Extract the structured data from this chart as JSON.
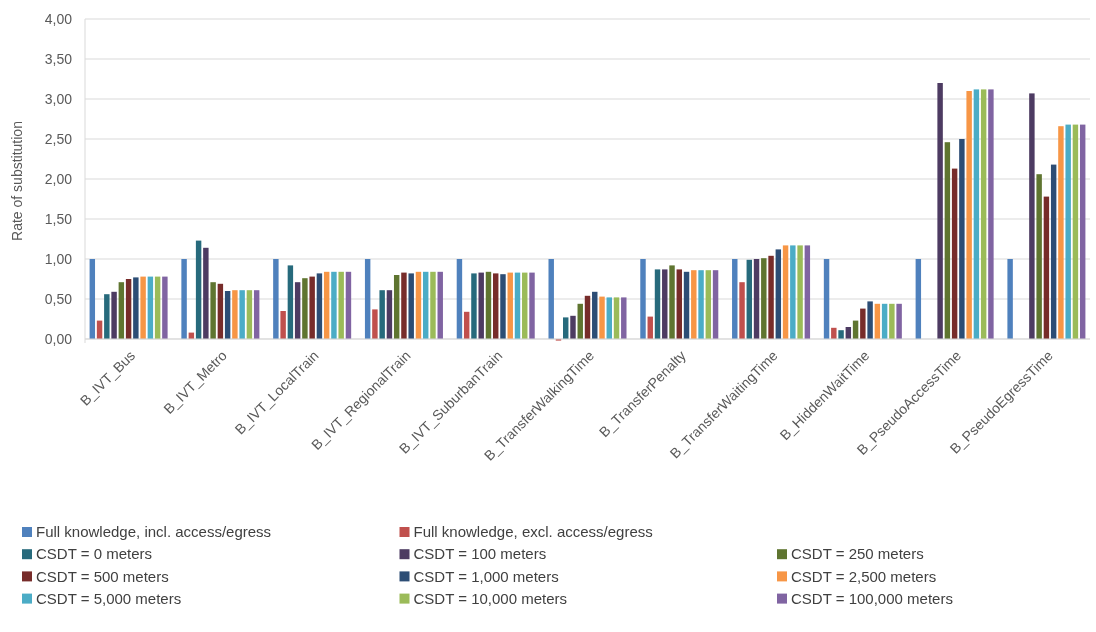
{
  "chart_data": {
    "type": "bar",
    "ylabel": "Rate of substitution",
    "categories": [
      "B_IVT_Bus",
      "B_IVT_Metro",
      "B_IVT_LocalTrain",
      "B_IVT_RegionalTrain",
      "B_IVT_SuburbanTrain",
      "B_TransferWalkingTime",
      "B_TransferPenalty",
      "B_TransferWaitingTime",
      "B_HiddenWaitTime",
      "B_PseudoAccessTime",
      "B_PseudoEgressTime"
    ],
    "series": [
      {
        "name": "Full knowledge, incl. access/egress",
        "color": "#4f81bd",
        "values": [
          1,
          1,
          1,
          1,
          1,
          1,
          1,
          1,
          1,
          1,
          1
        ]
      },
      {
        "name": "Full knowledge, excl. access/egress",
        "color": "#c0504d",
        "values": [
          0.23,
          0.08,
          0.35,
          0.37,
          0.34,
          -0.02,
          0.28,
          0.71,
          0.14,
          null,
          null
        ]
      },
      {
        "name": "CSDT = 0 meters",
        "color": "#276a7c",
        "values": [
          0.56,
          1.23,
          0.92,
          0.61,
          0.82,
          0.27,
          0.87,
          0.99,
          0.11,
          null,
          null
        ]
      },
      {
        "name": "CSDT = 100 meters",
        "color": "#4d3b62",
        "values": [
          0.59,
          1.14,
          0.71,
          0.61,
          0.83,
          0.29,
          0.87,
          1.0,
          0.15,
          3.2,
          3.07
        ]
      },
      {
        "name": "CSDT = 250 meters",
        "color": "#5f7530",
        "values": [
          0.71,
          0.71,
          0.76,
          0.8,
          0.84,
          0.44,
          0.92,
          1.01,
          0.23,
          2.46,
          2.06
        ]
      },
      {
        "name": "CSDT = 500 meters",
        "color": "#772c2a",
        "values": [
          0.75,
          0.69,
          0.78,
          0.83,
          0.82,
          0.54,
          0.87,
          1.04,
          0.38,
          2.13,
          1.78
        ]
      },
      {
        "name": "CSDT = 1,000 meters",
        "color": "#2c4d75",
        "values": [
          0.77,
          0.6,
          0.82,
          0.82,
          0.81,
          0.59,
          0.84,
          1.12,
          0.47,
          2.5,
          2.18
        ]
      },
      {
        "name": "CSDT = 2,500 meters",
        "color": "#f79646",
        "values": [
          0.78,
          0.61,
          0.84,
          0.84,
          0.83,
          0.53,
          0.86,
          1.17,
          0.44,
          3.1,
          2.66
        ]
      },
      {
        "name": "CSDT = 5,000 meters",
        "color": "#4bacc6",
        "values": [
          0.78,
          0.61,
          0.84,
          0.84,
          0.83,
          0.52,
          0.86,
          1.17,
          0.44,
          3.12,
          2.68
        ]
      },
      {
        "name": "CSDT = 10,000 meters",
        "color": "#9bbb59",
        "values": [
          0.78,
          0.61,
          0.84,
          0.84,
          0.83,
          0.52,
          0.86,
          1.17,
          0.44,
          3.12,
          2.68
        ]
      },
      {
        "name": "CSDT = 100,000 meters",
        "color": "#8064a2",
        "values": [
          0.78,
          0.61,
          0.84,
          0.84,
          0.83,
          0.52,
          0.86,
          1.17,
          0.44,
          3.12,
          2.68
        ]
      }
    ],
    "ylim": [
      -0.05,
      4
    ],
    "yticks": [
      {
        "value": 0,
        "label": "0,00"
      },
      {
        "value": 0.5,
        "label": "0,50"
      },
      {
        "value": 1,
        "label": "1,00"
      },
      {
        "value": 1.5,
        "label": "1,50"
      },
      {
        "value": 2,
        "label": "2,00"
      },
      {
        "value": 2.5,
        "label": "2,50"
      },
      {
        "value": 3,
        "label": "3,00"
      },
      {
        "value": 3.5,
        "label": "3,50"
      },
      {
        "value": 4,
        "label": "4,00"
      }
    ],
    "grid": "y",
    "legend": "bottom"
  }
}
